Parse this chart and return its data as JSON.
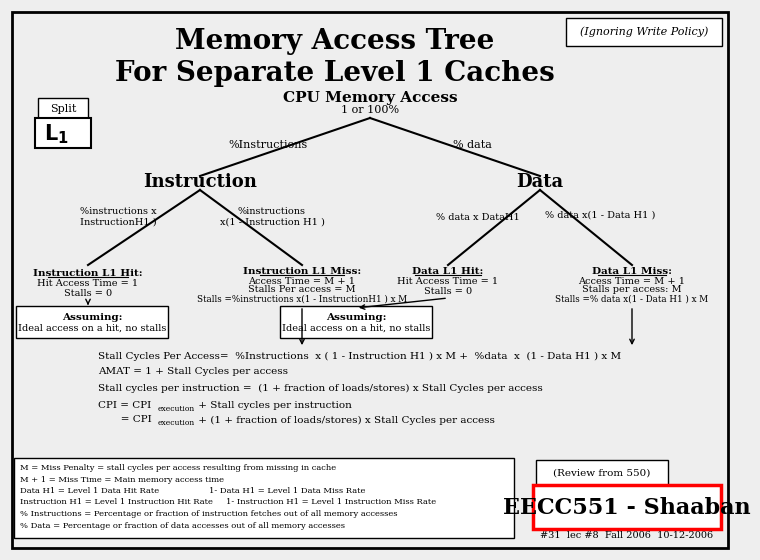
{
  "title1": "Memory Access Tree",
  "title2": "For Separate Level 1 Caches",
  "subtitle_ignore": "(Ignoring Write Policy)",
  "cpu_label": "CPU Memory Access",
  "cpu_pct": "1 or 100%",
  "left_branch_label": "%Instructions",
  "right_branch_label": "% data",
  "instr_label": "Instruction",
  "data_label": "Data",
  "stall_eq": "Stall Cycles Per Access=  %Instructions  x ( 1 - Instruction H1 ) x M +  %data  x  (1 - Data H1 ) x M",
  "amat_eq": "AMAT = 1 + Stall Cycles per access",
  "stall_instr_eq": "Stall cycles per instruction =  (1 + fraction of loads/stores) x Stall Cycles per access",
  "legend_text": "M = Miss Penalty = stall cycles per access resulting from missing in cache\nM + 1 = Miss Time = Main memory access time\nData H1 = Level 1 Data Hit Rate                   1- Data H1 = Level 1 Data Miss Rate\nInstruction H1 = Level 1 Instruction Hit Rate     1- Instruction H1 = Level 1 Instruction Miss Rate\n% Instructions = Percentage or fraction of instruction fetches out of all memory accesses\n% Data = Percentage or fraction of data accesses out of all memory accesses",
  "review_text": "(Review from 550)",
  "eecc_text": "EECC551 - Shaaban",
  "footer_text": "#31  lec #8  Fall 2006  10-12-2006",
  "split_label": "Split",
  "l1_label": "L",
  "bg_color": "#eeeeee",
  "box_color": "#ffffff",
  "tree_line_color": "#000000"
}
